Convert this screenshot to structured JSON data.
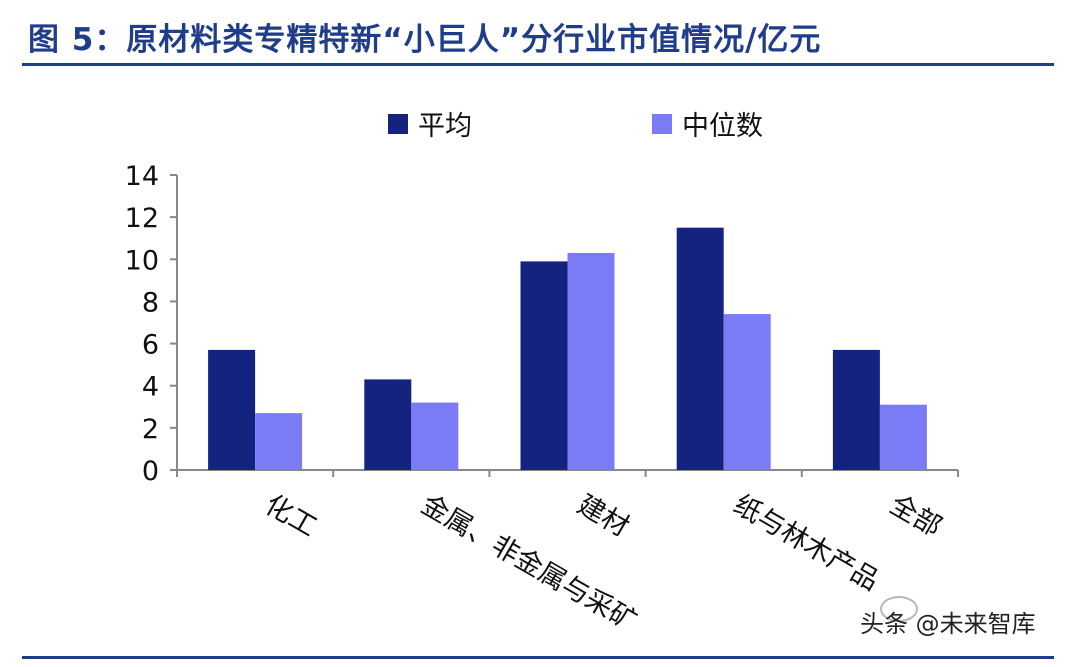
{
  "figure": {
    "title": "图 5：原材料类专精特新“小巨人”分行业市值情况/亿元"
  },
  "watermark": {
    "text": "头条 @未来智库"
  },
  "colors": {
    "title": "#1f3d8a",
    "series_avg": "#13237f",
    "series_median": "#7b7cf5"
  },
  "chart_data": {
    "type": "bar",
    "categories": [
      "化工",
      "金属、非金属与采矿",
      "建材",
      "纸与林木产品",
      "全部"
    ],
    "category_lines": [
      [
        "化工"
      ],
      [
        "金属、非金属与采矿"
      ],
      [
        "建材"
      ],
      [
        "纸与林木产品"
      ],
      [
        "全部"
      ]
    ],
    "series": [
      {
        "name": "平均",
        "values": [
          5.7,
          4.3,
          9.9,
          11.5,
          5.7
        ],
        "color": "#13237f"
      },
      {
        "name": "中位数",
        "values": [
          2.7,
          3.2,
          10.3,
          7.4,
          3.1
        ],
        "color": "#7b7cf5"
      }
    ],
    "ylim": [
      0,
      14
    ],
    "yticks": [
      "0",
      "2",
      "4",
      "6",
      "8",
      "10",
      "12",
      "14"
    ],
    "xlabel": "",
    "ylabel": "",
    "legend_position": "top-center",
    "grid": false
  }
}
